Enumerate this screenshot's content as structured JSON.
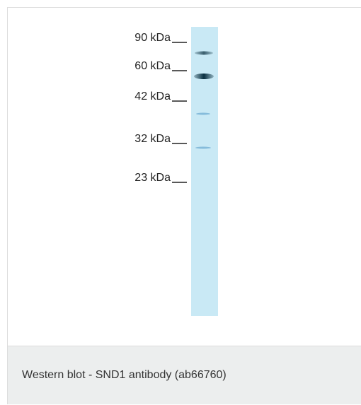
{
  "markers": [
    "90 kDa",
    "60 kDa",
    "42 kDa",
    "32 kDa",
    "23 kDa"
  ],
  "caption": "Western blot - SND1 antibody (ab66760)"
}
